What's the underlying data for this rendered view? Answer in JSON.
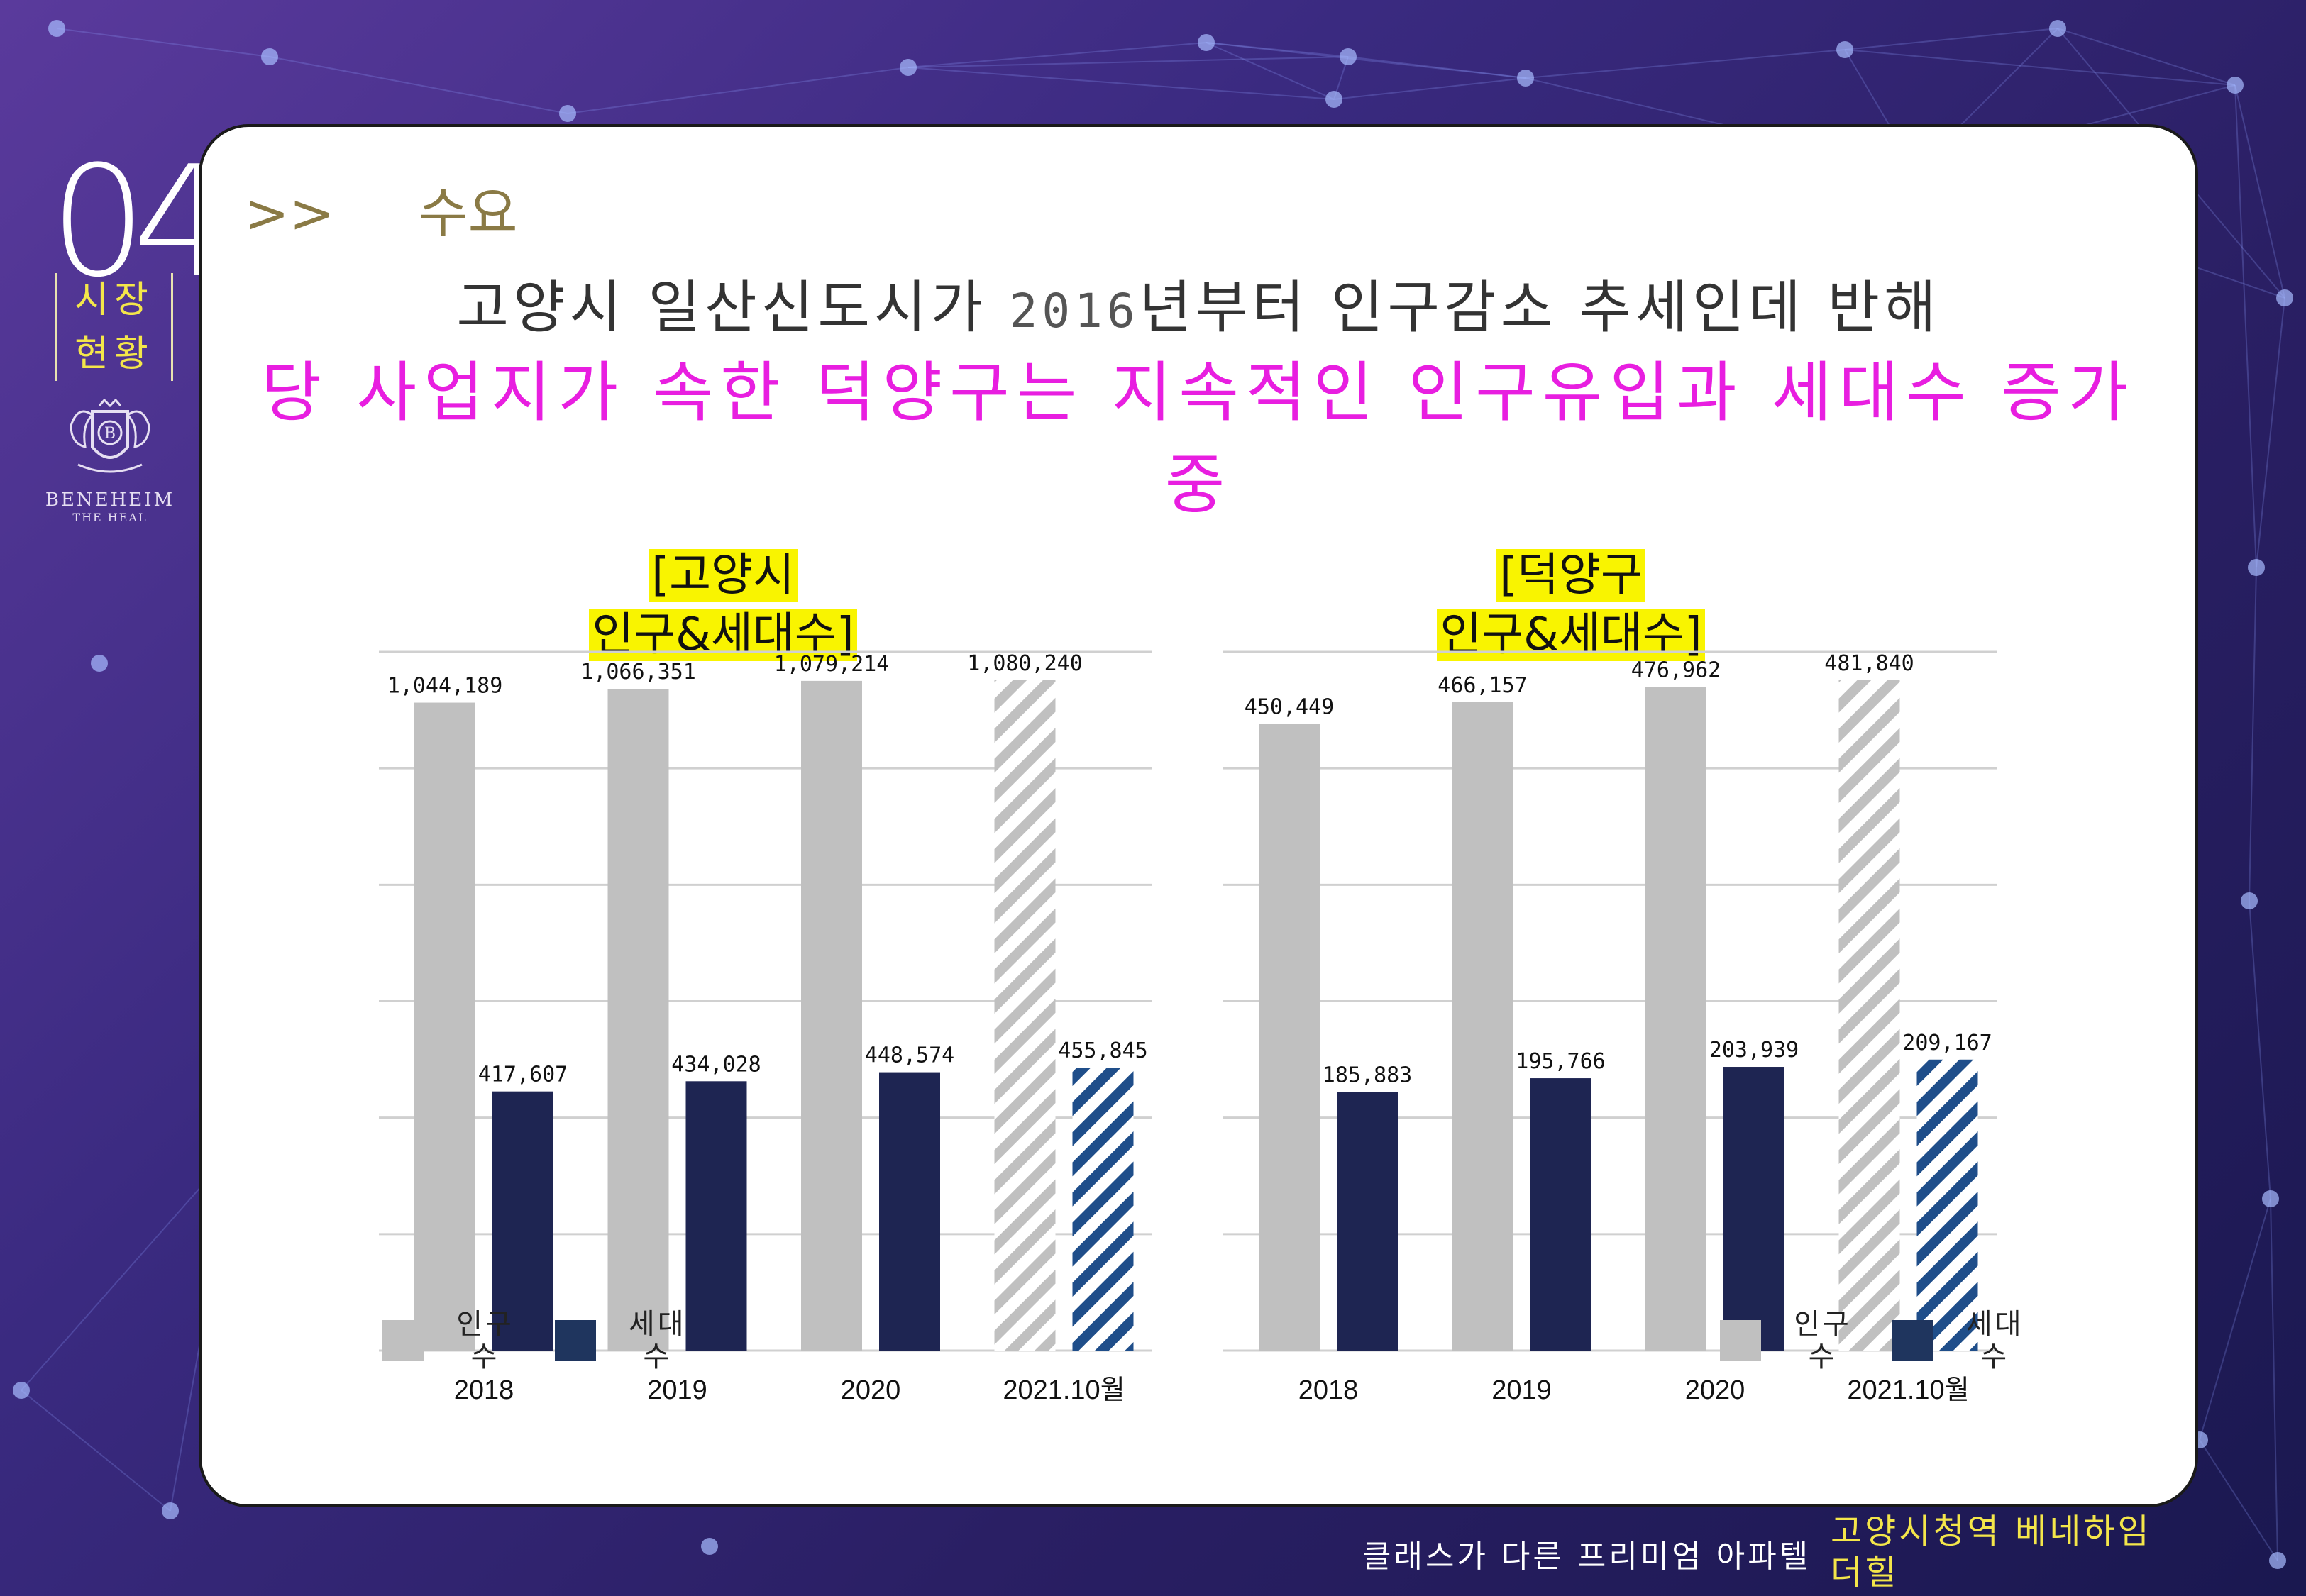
{
  "section": {
    "number": "04",
    "name_line1": "시장",
    "name_line2": "현황",
    "logo_text": "BENEHEIM",
    "logo_sub": "THE HEAL"
  },
  "subhead": {
    "arrows": ">>",
    "label": "수요"
  },
  "headline": {
    "line1_pre": "고양시 일산신도시가 ",
    "line1_year": "2016",
    "line1_post": "년부터 인구감소 추세인데 반해",
    "line2": "당 사업지가 속한 덕양구는 지속적인 인구유입과 세대수 증가중"
  },
  "footer": {
    "tagline": "클래스가 다른 프리미엄 아파텔",
    "brand": "고양시청역 베네하임더힐"
  },
  "colors": {
    "population": "#c0c0c0",
    "households": "#1e2552",
    "legend_households": "#1f355e",
    "headline_highlight": "#e81ee0",
    "title_highlight": "#f9f400"
  },
  "chart_data": [
    {
      "type": "bar",
      "title_line1": "[고양시",
      "title_line2": "인구&세대수]",
      "categories": [
        "2018",
        "2019",
        "2020",
        "2021.10월"
      ],
      "series": [
        {
          "name": "인구수",
          "values": [
            1044189,
            1066351,
            1079214,
            1080240
          ],
          "labels": [
            "1,044,189",
            "1,066,351",
            "1,079,214",
            "1,080,240"
          ]
        },
        {
          "name": "세대수",
          "values": [
            417607,
            434028,
            448574,
            455845
          ],
          "labels": [
            "417,607",
            "434,028",
            "448,574",
            "455,845"
          ]
        }
      ],
      "hatched_category": "2021.10월",
      "grid": true,
      "legend_position": "bottom-left"
    },
    {
      "type": "bar",
      "title_line1": "[덕양구",
      "title_line2": "인구&세대수]",
      "categories": [
        "2018",
        "2019",
        "2020",
        "2021.10월"
      ],
      "series": [
        {
          "name": "인구수",
          "values": [
            450449,
            466157,
            476962,
            481840
          ],
          "labels": [
            "450,449",
            "466,157",
            "476,962",
            "481,840"
          ]
        },
        {
          "name": "세대수",
          "values": [
            185883,
            195766,
            203939,
            209167
          ],
          "labels": [
            "185,883",
            "195,766",
            "203,939",
            "209,167"
          ]
        }
      ],
      "hatched_category": "2021.10월",
      "grid": true,
      "legend_position": "bottom-right"
    }
  ]
}
